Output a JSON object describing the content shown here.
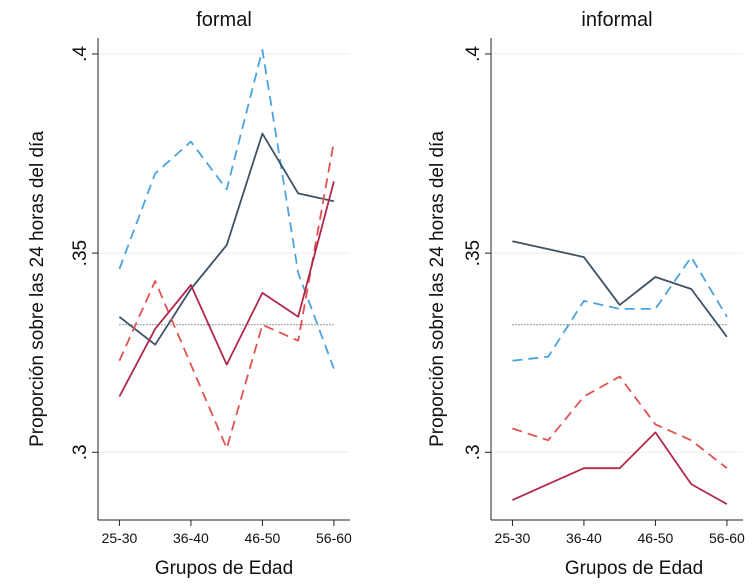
{
  "chart_data": [
    {
      "type": "line",
      "title": "formal",
      "xlabel": "Grupos de Edad",
      "ylabel": "Proporción sobre las 24 horas del día",
      "x": [
        0,
        1,
        2,
        3,
        4,
        5,
        6
      ],
      "xticks": [
        {
          "x": 0,
          "label": "25-30"
        },
        {
          "x": 2,
          "label": "36-40"
        },
        {
          "x": 4,
          "label": "46-50"
        },
        {
          "x": 6,
          "label": "56-60"
        }
      ],
      "xlim": [
        -0.6,
        6.45
      ],
      "ylim": [
        0.283,
        0.404
      ],
      "yticks": [
        {
          "value": 0.3,
          "label": ".3"
        },
        {
          "value": 0.35,
          "label": ".35"
        },
        {
          "value": 0.4,
          "label": ".4"
        }
      ],
      "grid": true,
      "reference_line": 0.332,
      "series": [
        {
          "values": [
            0.346,
            0.37,
            0.378,
            0.366,
            0.401,
            0.345,
            0.321
          ],
          "color": "#4aa3df",
          "dash": "10 6"
        },
        {
          "values": [
            0.334,
            0.327,
            0.341,
            0.352,
            0.38,
            0.365,
            0.363
          ],
          "color": "#3d5266",
          "dash": ""
        },
        {
          "values": [
            0.323,
            0.343,
            0.322,
            0.301,
            0.332,
            0.328,
            0.378
          ],
          "color": "#e0524f",
          "dash": "10 6"
        },
        {
          "values": [
            0.314,
            0.331,
            0.342,
            0.322,
            0.34,
            0.334,
            0.368
          ],
          "color": "#b0284a",
          "dash": ""
        }
      ]
    },
    {
      "type": "line",
      "title": "informal",
      "xlabel": "Grupos de Edad",
      "ylabel": "Proporción sobre las 24 horas del día",
      "x": [
        0,
        1,
        2,
        3,
        4,
        5,
        6
      ],
      "xticks": [
        {
          "x": 0,
          "label": "25-30"
        },
        {
          "x": 2,
          "label": "36-40"
        },
        {
          "x": 4,
          "label": "46-50"
        },
        {
          "x": 6,
          "label": "56-60"
        }
      ],
      "xlim": [
        -0.6,
        6.45
      ],
      "ylim": [
        0.283,
        0.404
      ],
      "yticks": [
        {
          "value": 0.3,
          "label": ".3"
        },
        {
          "value": 0.35,
          "label": ".35"
        },
        {
          "value": 0.4,
          "label": ".4"
        }
      ],
      "grid": true,
      "reference_line": 0.332,
      "series": [
        {
          "values": [
            0.323,
            0.324,
            0.338,
            0.336,
            0.336,
            0.349,
            0.334
          ],
          "color": "#4aa3df",
          "dash": "10 6"
        },
        {
          "values": [
            0.353,
            0.351,
            0.349,
            0.337,
            0.344,
            0.341,
            0.329
          ],
          "color": "#3d5266",
          "dash": ""
        },
        {
          "values": [
            0.306,
            0.303,
            0.314,
            0.319,
            0.307,
            0.303,
            0.296
          ],
          "color": "#e0524f",
          "dash": "10 6"
        },
        {
          "values": [
            0.288,
            0.292,
            0.296,
            0.296,
            0.305,
            0.292,
            0.287
          ],
          "color": "#b0284a",
          "dash": ""
        }
      ]
    }
  ]
}
